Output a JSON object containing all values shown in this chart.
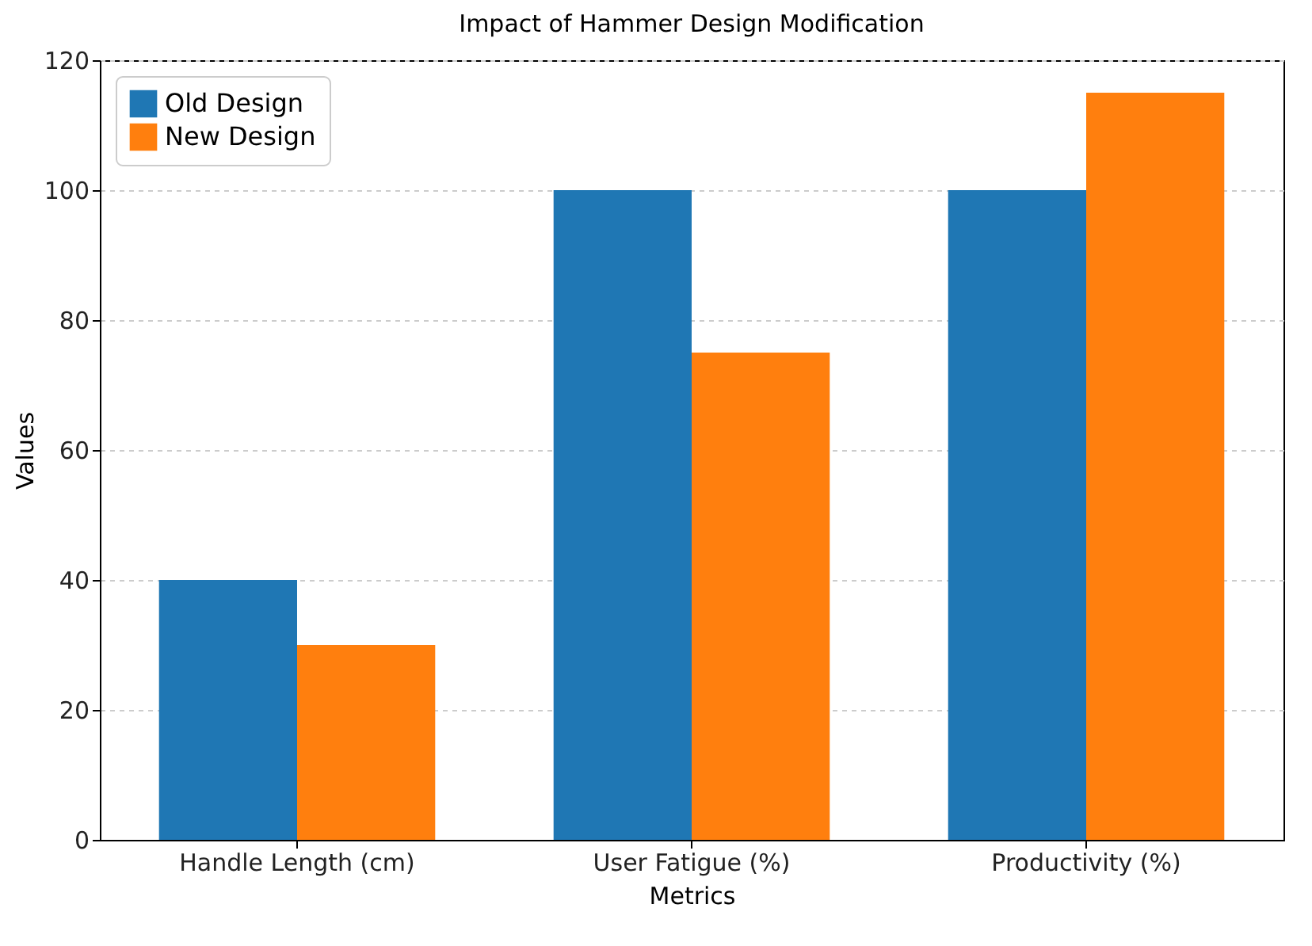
{
  "chart_data": {
    "type": "bar",
    "title": "Impact of Hammer Design Modification",
    "xlabel": "Metrics",
    "ylabel": "Values",
    "categories": [
      "Handle Length (cm)",
      "User Fatigue (%)",
      "Productivity (%)"
    ],
    "series": [
      {
        "name": "Old Design",
        "color": "#1f77b4",
        "values": [
          40,
          100,
          100
        ]
      },
      {
        "name": "New Design",
        "color": "#ff7f0e",
        "values": [
          30,
          75,
          115
        ]
      }
    ],
    "ylim": [
      0,
      120
    ],
    "yticks": [
      0,
      20,
      40,
      60,
      80,
      100,
      120
    ],
    "grid": "y",
    "legend": "top left"
  }
}
